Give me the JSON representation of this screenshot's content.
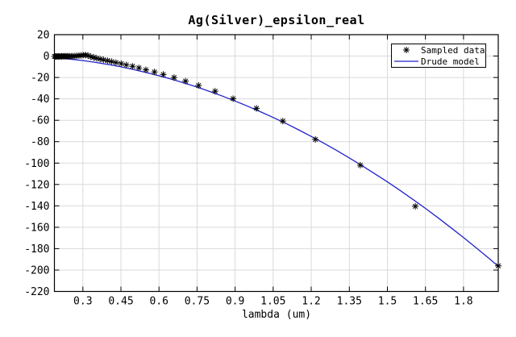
{
  "chart_data": {
    "type": "line",
    "title": "Ag(Silver)_epsilon_real",
    "xlabel": "lambda (um)",
    "ylabel": "",
    "xlim": [
      0.1879,
      1.937
    ],
    "ylim": [
      -220,
      20
    ],
    "grid": true,
    "grid_color": "#d9d9d9",
    "axis_color": "#000000",
    "x_ticks": [
      0.3,
      0.45,
      0.6,
      0.75,
      0.9,
      1.05,
      1.2,
      1.35,
      1.5,
      1.65,
      1.8
    ],
    "x_tick_labels": [
      "0.3",
      "0.45",
      "0.6",
      "0.75",
      "0.9",
      "1.05",
      "1.2",
      "1.35",
      "1.5",
      "1.65",
      "1.8"
    ],
    "y_ticks": [
      20,
      0,
      -20,
      -40,
      -60,
      -80,
      -100,
      -120,
      -140,
      -160,
      -180,
      -200,
      -220
    ],
    "y_tick_labels": [
      "20",
      "0",
      "-20",
      "-40",
      "-60",
      "-80",
      "-100",
      "-120",
      "-140",
      "-160",
      "-180",
      "-200",
      "-220"
    ],
    "legend": {
      "position": "top-right",
      "entries": [
        {
          "label": "Sampled data",
          "marker": "asterisk",
          "color": "#000000"
        },
        {
          "label": "Drude model",
          "marker": "line",
          "color": "#2222cc"
        }
      ]
    },
    "series": [
      {
        "name": "Sampled data",
        "type": "scatter",
        "marker": "asterisk",
        "color": "#000000",
        "x": [
          0.1879,
          0.1916,
          0.1953,
          0.1993,
          0.2033,
          0.2073,
          0.2119,
          0.2164,
          0.2214,
          0.2262,
          0.2313,
          0.2371,
          0.2426,
          0.249,
          0.2551,
          0.2616,
          0.2689,
          0.2761,
          0.2844,
          0.2924,
          0.3009,
          0.3107,
          0.3204,
          0.3315,
          0.3425,
          0.3542,
          0.3679,
          0.3815,
          0.3974,
          0.4133,
          0.4305,
          0.4509,
          0.4714,
          0.4959,
          0.5209,
          0.5486,
          0.5821,
          0.6168,
          0.6595,
          0.7045,
          0.756,
          0.8211,
          0.892,
          0.984,
          1.088,
          1.216,
          1.393,
          1.61,
          1.937
        ],
        "y": [
          -0.32,
          -0.31,
          -0.32,
          -0.33,
          -0.36,
          -0.33,
          -0.32,
          -0.3,
          -0.24,
          -0.22,
          -0.2,
          -0.23,
          -0.21,
          -0.21,
          -0.17,
          -0.1,
          0.02,
          0.22,
          0.39,
          0.58,
          0.87,
          0.9,
          0.5,
          -0.66,
          -1.28,
          -2.0,
          -2.74,
          -3.47,
          -4.28,
          -5.17,
          -6.06,
          -7.06,
          -8.23,
          -9.57,
          -11.05,
          -12.86,
          -14.88,
          -17.24,
          -20.09,
          -23.4,
          -27.5,
          -32.8,
          -39.8,
          -48.9,
          -60.8,
          -77.9,
          -102.0,
          -140.4,
          -196.0
        ]
      },
      {
        "name": "Drude model",
        "type": "line",
        "color": "#2222cc",
        "x": [
          0.188,
          0.25,
          0.3,
          0.35,
          0.4,
          0.45,
          0.5,
          0.55,
          0.6,
          0.65,
          0.7,
          0.75,
          0.8,
          0.85,
          0.9,
          0.95,
          1.0,
          1.05,
          1.1,
          1.15,
          1.2,
          1.25,
          1.3,
          1.35,
          1.4,
          1.45,
          1.5,
          1.55,
          1.6,
          1.65,
          1.7,
          1.75,
          1.8,
          1.85,
          1.9,
          1.937
        ],
        "y": [
          -1.4,
          -2.8,
          -4.2,
          -5.9,
          -7.9,
          -10.1,
          -12.6,
          -15.4,
          -18.4,
          -21.7,
          -25.2,
          -29.0,
          -33.1,
          -37.4,
          -42.0,
          -46.9,
          -52.0,
          -57.4,
          -63.0,
          -68.9,
          -75.1,
          -81.5,
          -88.2,
          -95.2,
          -102.4,
          -109.9,
          -117.6,
          -125.6,
          -133.9,
          -142.4,
          -151.2,
          -160.3,
          -169.6,
          -179.2,
          -189.0,
          -196.5
        ]
      }
    ]
  }
}
